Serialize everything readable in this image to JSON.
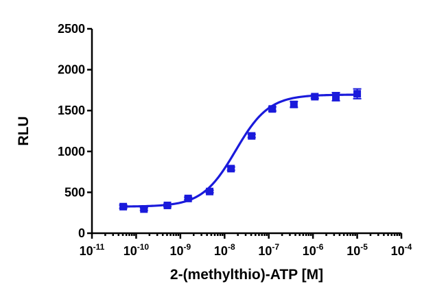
{
  "chart_data": {
    "type": "scatter",
    "xlabel": "2-(methylthio)-ATP [M]",
    "ylabel": "RLU",
    "x_scale": "log",
    "xlim": [
      1e-11,
      0.0001
    ],
    "ylim": [
      0,
      2500
    ],
    "x_ticks": [
      {
        "value": 1e-11,
        "base": "10",
        "exp": "-11"
      },
      {
        "value": 1e-10,
        "base": "10",
        "exp": "-10"
      },
      {
        "value": 1e-09,
        "base": "10",
        "exp": "-9"
      },
      {
        "value": 1e-08,
        "base": "10",
        "exp": "-8"
      },
      {
        "value": 1e-07,
        "base": "10",
        "exp": "-7"
      },
      {
        "value": 1e-06,
        "base": "10",
        "exp": "-6"
      },
      {
        "value": 1e-05,
        "base": "10",
        "exp": "-5"
      },
      {
        "value": 0.0001,
        "base": "10",
        "exp": "-4"
      }
    ],
    "y_ticks": [
      {
        "value": 0,
        "label": "0"
      },
      {
        "value": 500,
        "label": "500"
      },
      {
        "value": 1000,
        "label": "1000"
      },
      {
        "value": 1500,
        "label": "1500"
      },
      {
        "value": 2000,
        "label": "2000"
      },
      {
        "value": 2500,
        "label": "2500"
      }
    ],
    "series": [
      {
        "color": "#1a1adb",
        "marker": "square",
        "points": [
          {
            "x": 5.1e-11,
            "y": 325,
            "err": 20
          },
          {
            "x": 1.5e-10,
            "y": 295,
            "err": 15
          },
          {
            "x": 5.1e-10,
            "y": 340,
            "err": 15
          },
          {
            "x": 1.5e-09,
            "y": 425,
            "err": 15
          },
          {
            "x": 4.6e-09,
            "y": 510,
            "err": 15
          },
          {
            "x": 1.4e-08,
            "y": 790,
            "err": 20
          },
          {
            "x": 4.1e-08,
            "y": 1190,
            "err": 20
          },
          {
            "x": 1.2e-07,
            "y": 1520,
            "err": 25
          },
          {
            "x": 3.7e-07,
            "y": 1575,
            "err": 35
          },
          {
            "x": 1.1e-06,
            "y": 1670,
            "err": 20
          },
          {
            "x": 3.3e-06,
            "y": 1670,
            "err": 50
          },
          {
            "x": 1e-05,
            "y": 1705,
            "err": 60
          }
        ],
        "fit": {
          "model": "four-parameter logistic",
          "bottom": 325,
          "top": 1695,
          "log_ec50": -7.75,
          "hill_slope": 1.15,
          "x_range": [
            5.1e-11,
            1e-05
          ]
        }
      }
    ],
    "grid": false,
    "legend": "none"
  }
}
